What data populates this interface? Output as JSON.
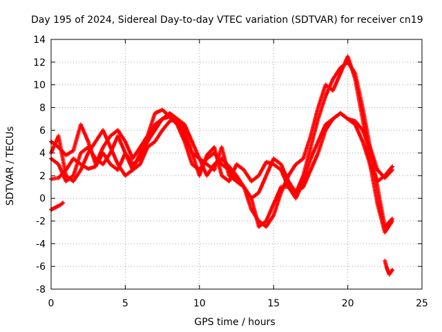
{
  "chart_data": {
    "type": "scatter",
    "title": "Day 195 of 2024, Sidereal Day-to-day VTEC variation (SDTVAR) for receiver cn19",
    "xlabel": "GPS time / hours",
    "ylabel": "SDTVAR / TECUs",
    "xlim": [
      0,
      25
    ],
    "ylim": [
      -8,
      14
    ],
    "xticks": [
      "0",
      "5",
      "10",
      "15",
      "20",
      "25"
    ],
    "yticks": [
      "-8",
      "-6",
      "-4",
      "-2",
      "0",
      "2",
      "4",
      "6",
      "8",
      "10",
      "12",
      "14"
    ],
    "grid": true,
    "marker": "+",
    "series": [
      {
        "name": "trace-1",
        "color": "#ff0000",
        "x": [
          0.0,
          0.5,
          1.0,
          1.5,
          2.0,
          2.5,
          3.0,
          3.5,
          4.0,
          4.5,
          5.0,
          5.5,
          6.0,
          6.5,
          7.0,
          7.5,
          8.0,
          8.5,
          9.0,
          9.5,
          10.0,
          10.5,
          11.0,
          11.5,
          12.0,
          12.5,
          13.0,
          13.5,
          14.0,
          14.5,
          15.0,
          15.5,
          16.0,
          16.5,
          17.0,
          17.5,
          18.0,
          18.5,
          19.0,
          19.5,
          20.0,
          20.5,
          21.0,
          21.5,
          22.0,
          22.5,
          23.0
        ],
        "y": [
          5.0,
          4.5,
          3.8,
          4.2,
          6.5,
          5.0,
          3.0,
          4.5,
          5.5,
          6.0,
          5.0,
          3.5,
          4.5,
          5.5,
          7.5,
          7.8,
          7.2,
          6.5,
          5.0,
          3.0,
          2.5,
          3.5,
          4.0,
          3.0,
          2.5,
          1.5,
          1.0,
          0.0,
          -2.5,
          -2.0,
          -0.5,
          1.0,
          1.0,
          0.5,
          2.0,
          4.5,
          7.0,
          9.0,
          10.5,
          11.5,
          12.0,
          11.0,
          8.0,
          4.5,
          1.0,
          -2.5,
          -1.8
        ]
      },
      {
        "name": "trace-2",
        "color": "#ff0000",
        "x": [
          0.0,
          0.5,
          1.0,
          1.5,
          2.0,
          2.5,
          3.0,
          3.5,
          4.0,
          4.5,
          5.0,
          5.5,
          6.0,
          6.5,
          7.0,
          7.5,
          8.0,
          8.5,
          9.0,
          9.5,
          10.0,
          10.5,
          11.0,
          11.5,
          12.0,
          12.5,
          13.0,
          13.5,
          14.0,
          14.5,
          15.0,
          15.5,
          16.0,
          16.5,
          17.0,
          17.5,
          18.0,
          18.5,
          19.0,
          19.5,
          20.0,
          20.5,
          21.0,
          21.5,
          22.0,
          22.5,
          23.0
        ],
        "y": [
          1.7,
          1.8,
          2.5,
          3.5,
          3.0,
          2.6,
          2.8,
          4.0,
          3.0,
          2.5,
          4.0,
          3.0,
          3.5,
          5.0,
          6.5,
          7.0,
          7.5,
          7.0,
          6.0,
          4.0,
          2.0,
          3.8,
          4.5,
          2.0,
          1.5,
          3.0,
          2.5,
          1.5,
          2.0,
          3.2,
          3.0,
          2.5,
          1.0,
          0.0,
          1.5,
          3.5,
          5.0,
          6.5,
          7.0,
          7.5,
          7.0,
          6.8,
          6.0,
          4.5,
          2.5,
          1.8,
          2.5
        ]
      },
      {
        "name": "trace-3",
        "color": "#ff0000",
        "x": [
          0.0,
          0.5,
          1.0,
          1.5,
          2.0,
          2.5,
          3.0,
          3.5,
          4.0,
          4.5,
          5.0,
          5.5,
          6.0,
          6.5,
          7.0,
          7.5,
          8.0,
          8.5,
          9.0,
          9.5,
          10.0,
          10.5,
          11.0,
          11.5,
          12.0,
          12.5,
          13.0,
          13.5,
          14.0,
          14.5,
          15.0,
          15.5,
          16.0,
          16.5,
          17.0,
          17.5,
          18.0,
          18.5,
          19.0,
          19.5,
          20.0,
          20.5,
          21.0,
          21.5,
          22.0,
          22.5,
          23.0
        ],
        "y": [
          4.0,
          5.5,
          2.0,
          1.5,
          2.5,
          4.0,
          5.0,
          6.0,
          4.5,
          3.0,
          2.0,
          2.5,
          4.0,
          5.0,
          6.0,
          7.0,
          7.2,
          6.8,
          5.5,
          4.0,
          3.5,
          3.0,
          2.5,
          4.5,
          2.0,
          1.5,
          1.0,
          -1.0,
          -2.0,
          -2.5,
          -1.5,
          0.5,
          2.0,
          3.0,
          3.5,
          5.5,
          8.0,
          10.0,
          9.5,
          11.0,
          12.5,
          10.5,
          7.0,
          3.0,
          -0.5,
          -3.0,
          -2.0
        ]
      },
      {
        "name": "trace-4",
        "color": "#ff0000",
        "x": [
          0.0,
          0.5,
          1.0,
          1.5,
          2.0,
          2.5,
          3.0,
          3.5,
          4.0,
          4.5,
          5.0,
          5.5,
          6.0,
          6.5,
          7.0,
          7.5,
          8.0,
          8.5,
          9.0,
          9.5,
          10.0,
          10.5,
          11.0,
          11.5,
          12.0,
          12.5,
          13.0,
          13.5,
          14.0,
          14.5,
          15.0,
          15.5,
          16.0,
          16.5,
          17.0,
          17.5,
          18.0,
          18.5,
          19.0,
          19.5,
          20.0,
          20.5,
          21.0,
          21.5,
          22.0,
          22.5,
          23.0
        ],
        "y": [
          3.5,
          3.0,
          1.5,
          2.0,
          4.0,
          4.5,
          3.5,
          3.0,
          4.0,
          5.5,
          4.0,
          2.5,
          3.0,
          4.5,
          5.0,
          6.0,
          6.8,
          7.0,
          6.5,
          5.0,
          3.5,
          2.0,
          3.0,
          3.5,
          2.8,
          2.0,
          1.0,
          0.0,
          0.5,
          2.0,
          3.5,
          3.0,
          1.5,
          0.5,
          1.0,
          2.5,
          4.0,
          6.0,
          7.0,
          7.5,
          7.0,
          6.5,
          5.0,
          3.0,
          1.5,
          2.0,
          2.8
        ]
      }
    ],
    "segments": [
      {
        "name": "early-segment",
        "x": [
          0.0,
          0.3,
          0.6,
          0.8
        ],
        "y": [
          -1.0,
          -0.8,
          -0.6,
          -0.4
        ]
      },
      {
        "name": "late-segment",
        "x": [
          22.5,
          22.6,
          22.7,
          22.8,
          22.9,
          23.0
        ],
        "y": [
          -5.5,
          -6.0,
          -6.4,
          -6.7,
          -6.5,
          -6.3
        ]
      }
    ]
  }
}
